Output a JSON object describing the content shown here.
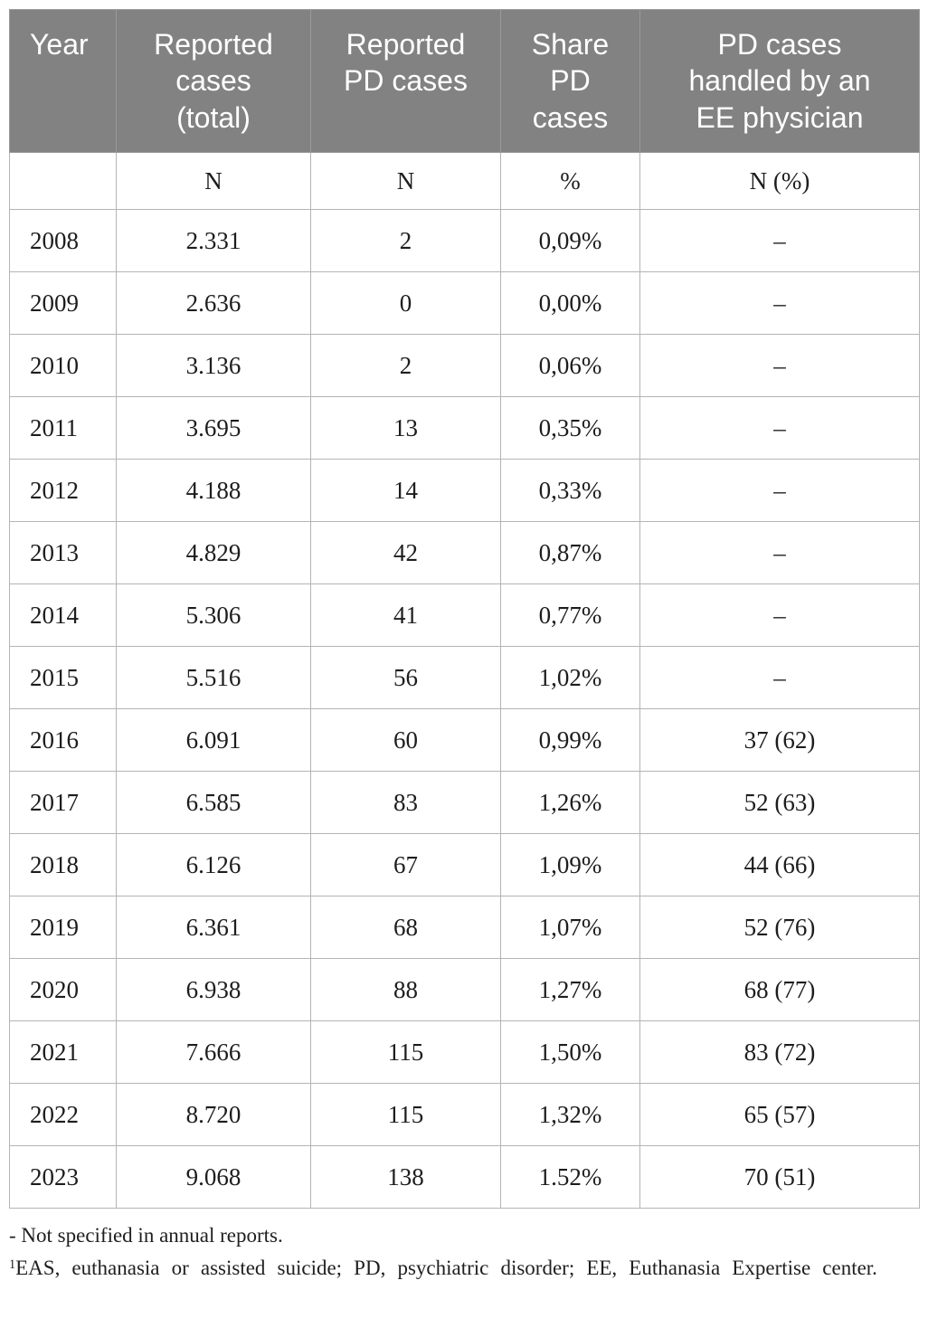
{
  "table": {
    "columns": [
      {
        "label": "Year",
        "unit": ""
      },
      {
        "label": "Reported\ncases\n(total)",
        "unit": "N"
      },
      {
        "label": "Reported\nPD cases",
        "unit": "N"
      },
      {
        "label": "Share\nPD\ncases",
        "unit": "%"
      },
      {
        "label": "PD cases\nhandled by an\nEE physician",
        "unit": "N (%)"
      }
    ],
    "rows": [
      [
        "2008",
        "2.331",
        "2",
        "0,09%",
        "–"
      ],
      [
        "2009",
        "2.636",
        "0",
        "0,00%",
        "–"
      ],
      [
        "2010",
        "3.136",
        "2",
        "0,06%",
        "–"
      ],
      [
        "2011",
        "3.695",
        "13",
        "0,35%",
        "–"
      ],
      [
        "2012",
        "4.188",
        "14",
        "0,33%",
        "–"
      ],
      [
        "2013",
        "4.829",
        "42",
        "0,87%",
        "–"
      ],
      [
        "2014",
        "5.306",
        "41",
        "0,77%",
        "–"
      ],
      [
        "2015",
        "5.516",
        "56",
        "1,02%",
        "–"
      ],
      [
        "2016",
        "6.091",
        "60",
        "0,99%",
        "37 (62)"
      ],
      [
        "2017",
        "6.585",
        "83",
        "1,26%",
        "52 (63)"
      ],
      [
        "2018",
        "6.126",
        "67",
        "1,09%",
        "44 (66)"
      ],
      [
        "2019",
        "6.361",
        "68",
        "1,07%",
        "52 (76)"
      ],
      [
        "2020",
        "6.938",
        "88",
        "1,27%",
        "68 (77)"
      ],
      [
        "2021",
        "7.666",
        "115",
        "1,50%",
        "83 (72)"
      ],
      [
        "2022",
        "8.720",
        "115",
        "1,32%",
        "65 (57)"
      ],
      [
        "2023",
        "9.068",
        "138",
        "1.52%",
        "70 (51)"
      ]
    ]
  },
  "footnotes": {
    "dash_note": "- Not specified in annual reports.",
    "abbrev_superscript": "1",
    "abbrev_note": "EAS, euthanasia or assisted suicide; PD, psychiatric disorder; EE, Euthanasia Expertise center."
  },
  "colors": {
    "header_bg": "#828282",
    "header_text": "#ffffff",
    "border": "#b4b4b4",
    "body_text": "#1d1d1d"
  }
}
